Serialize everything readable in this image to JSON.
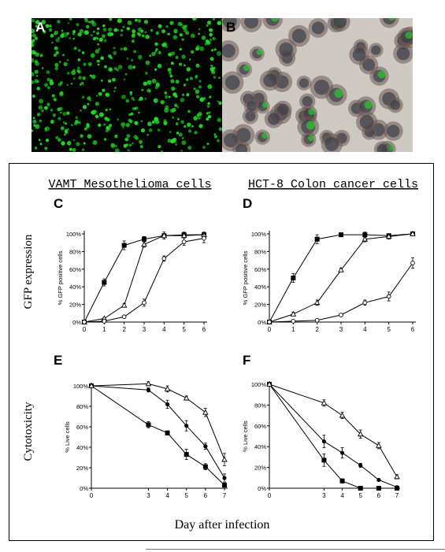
{
  "figure": {
    "panels": [
      "A",
      "B"
    ],
    "col_titles": [
      "VAMT Mesothelioma cells",
      "HCT-8 Colon cancer cells"
    ],
    "row_titles": [
      "GFP expression",
      "Cytotoxicity"
    ],
    "x_title": "Day after infection",
    "colors": {
      "fluorescence": "#22dd22",
      "background_dark": "#020402",
      "tissue": "#cfc9c4",
      "nucleus": "#3a3f4a"
    }
  },
  "chart_data": [
    {
      "panel": "C",
      "type": "line",
      "ylabel": "% GFP positive cells",
      "xlim": [
        0,
        6
      ],
      "ylim": [
        0,
        100
      ],
      "x_ticks": [
        "0",
        "1",
        "2",
        "3",
        "4",
        "5",
        "6"
      ],
      "y_ticks": [
        "0%",
        "20%",
        "40%",
        "60%",
        "80%",
        "100%"
      ],
      "series": [
        {
          "marker": "square-filled",
          "x": [
            0,
            1,
            2,
            3,
            4,
            5,
            6
          ],
          "y": [
            0,
            45,
            87,
            94,
            98,
            99,
            99
          ],
          "err": [
            1,
            4,
            5,
            3,
            4,
            3,
            3
          ]
        },
        {
          "marker": "triangle-open",
          "x": [
            0,
            1,
            2,
            3,
            4,
            5,
            6
          ],
          "y": [
            0,
            4,
            19,
            88,
            98,
            98,
            99
          ],
          "err": [
            1,
            1,
            2,
            3,
            2,
            2,
            2
          ]
        },
        {
          "marker": "circle-open",
          "x": [
            0,
            1,
            2,
            3,
            4,
            5,
            6
          ],
          "y": [
            0,
            1,
            6,
            22,
            72,
            91,
            95
          ],
          "err": [
            0,
            1,
            1,
            4,
            3,
            4,
            5
          ]
        }
      ]
    },
    {
      "panel": "D",
      "type": "line",
      "ylabel": "% GFP positive cells",
      "xlim": [
        0,
        6
      ],
      "ylim": [
        0,
        100
      ],
      "x_ticks": [
        "0",
        "1",
        "2",
        "3",
        "4",
        "5",
        "6"
      ],
      "y_ticks": [
        "0%",
        "20%",
        "40%",
        "60%",
        "80%",
        "100%"
      ],
      "series": [
        {
          "marker": "square-filled",
          "x": [
            0,
            1,
            2,
            3,
            4,
            5,
            6
          ],
          "y": [
            0,
            50,
            94,
            99,
            99,
            98,
            100
          ],
          "err": [
            1,
            5,
            5,
            2,
            3,
            2,
            1
          ]
        },
        {
          "marker": "triangle-open",
          "x": [
            0,
            1,
            2,
            3,
            4,
            5,
            6
          ],
          "y": [
            0,
            9,
            22,
            59,
            94,
            97,
            100
          ],
          "err": [
            0,
            2,
            3,
            2,
            3,
            3,
            1
          ]
        },
        {
          "marker": "circle-open",
          "x": [
            0,
            1,
            2,
            3,
            4,
            5,
            6
          ],
          "y": [
            0,
            1,
            2,
            8,
            22,
            29,
            67
          ],
          "err": [
            0,
            0,
            1,
            1,
            3,
            5,
            6
          ]
        }
      ]
    },
    {
      "panel": "E",
      "type": "line",
      "ylabel": "% Live cells",
      "xlim": [
        0,
        7
      ],
      "ylim": [
        0,
        100
      ],
      "x_ticks": [
        "0",
        "3",
        "4",
        "5",
        "6",
        "7"
      ],
      "y_ticks": [
        "0%",
        "20%",
        "40%",
        "60%",
        "80%",
        "100%"
      ],
      "series": [
        {
          "marker": "square-filled",
          "x": [
            0,
            3,
            4,
            5,
            6,
            7
          ],
          "y": [
            100,
            62,
            54,
            33,
            21,
            3
          ],
          "err": [
            1,
            3,
            2,
            5,
            3,
            2
          ]
        },
        {
          "marker": "circle-filled",
          "x": [
            0,
            3,
            4,
            5,
            6,
            7
          ],
          "y": [
            100,
            96,
            82,
            61,
            41,
            10
          ],
          "err": [
            1,
            2,
            4,
            5,
            3,
            4
          ]
        },
        {
          "marker": "triangle-open",
          "x": [
            0,
            3,
            4,
            5,
            6,
            7
          ],
          "y": [
            100,
            102,
            97,
            88,
            74,
            28
          ],
          "err": [
            1,
            2,
            3,
            2,
            4,
            6
          ]
        }
      ]
    },
    {
      "panel": "F",
      "type": "line",
      "ylabel": "% Live cells",
      "xlim": [
        0,
        7
      ],
      "ylim": [
        0,
        100
      ],
      "x_ticks": [
        "0",
        "3",
        "4",
        "5",
        "6",
        "7"
      ],
      "y_ticks": [
        "0%",
        "20%",
        "40%",
        "60%",
        "80%",
        "100%"
      ],
      "series": [
        {
          "marker": "square-filled",
          "x": [
            0,
            3,
            4,
            5,
            6,
            7
          ],
          "y": [
            100,
            27,
            7,
            0,
            0,
            0
          ],
          "err": [
            1,
            6,
            2,
            0,
            0,
            0
          ]
        },
        {
          "marker": "circle-filled",
          "x": [
            0,
            3,
            4,
            5,
            6,
            7
          ],
          "y": [
            100,
            45,
            34,
            22,
            8,
            1
          ],
          "err": [
            1,
            6,
            5,
            2,
            1,
            1
          ]
        },
        {
          "marker": "triangle-open",
          "x": [
            0,
            3,
            4,
            5,
            6,
            7
          ],
          "y": [
            100,
            82,
            70,
            52,
            41,
            11
          ],
          "err": [
            1,
            3,
            3,
            4,
            3,
            2
          ]
        }
      ]
    }
  ]
}
